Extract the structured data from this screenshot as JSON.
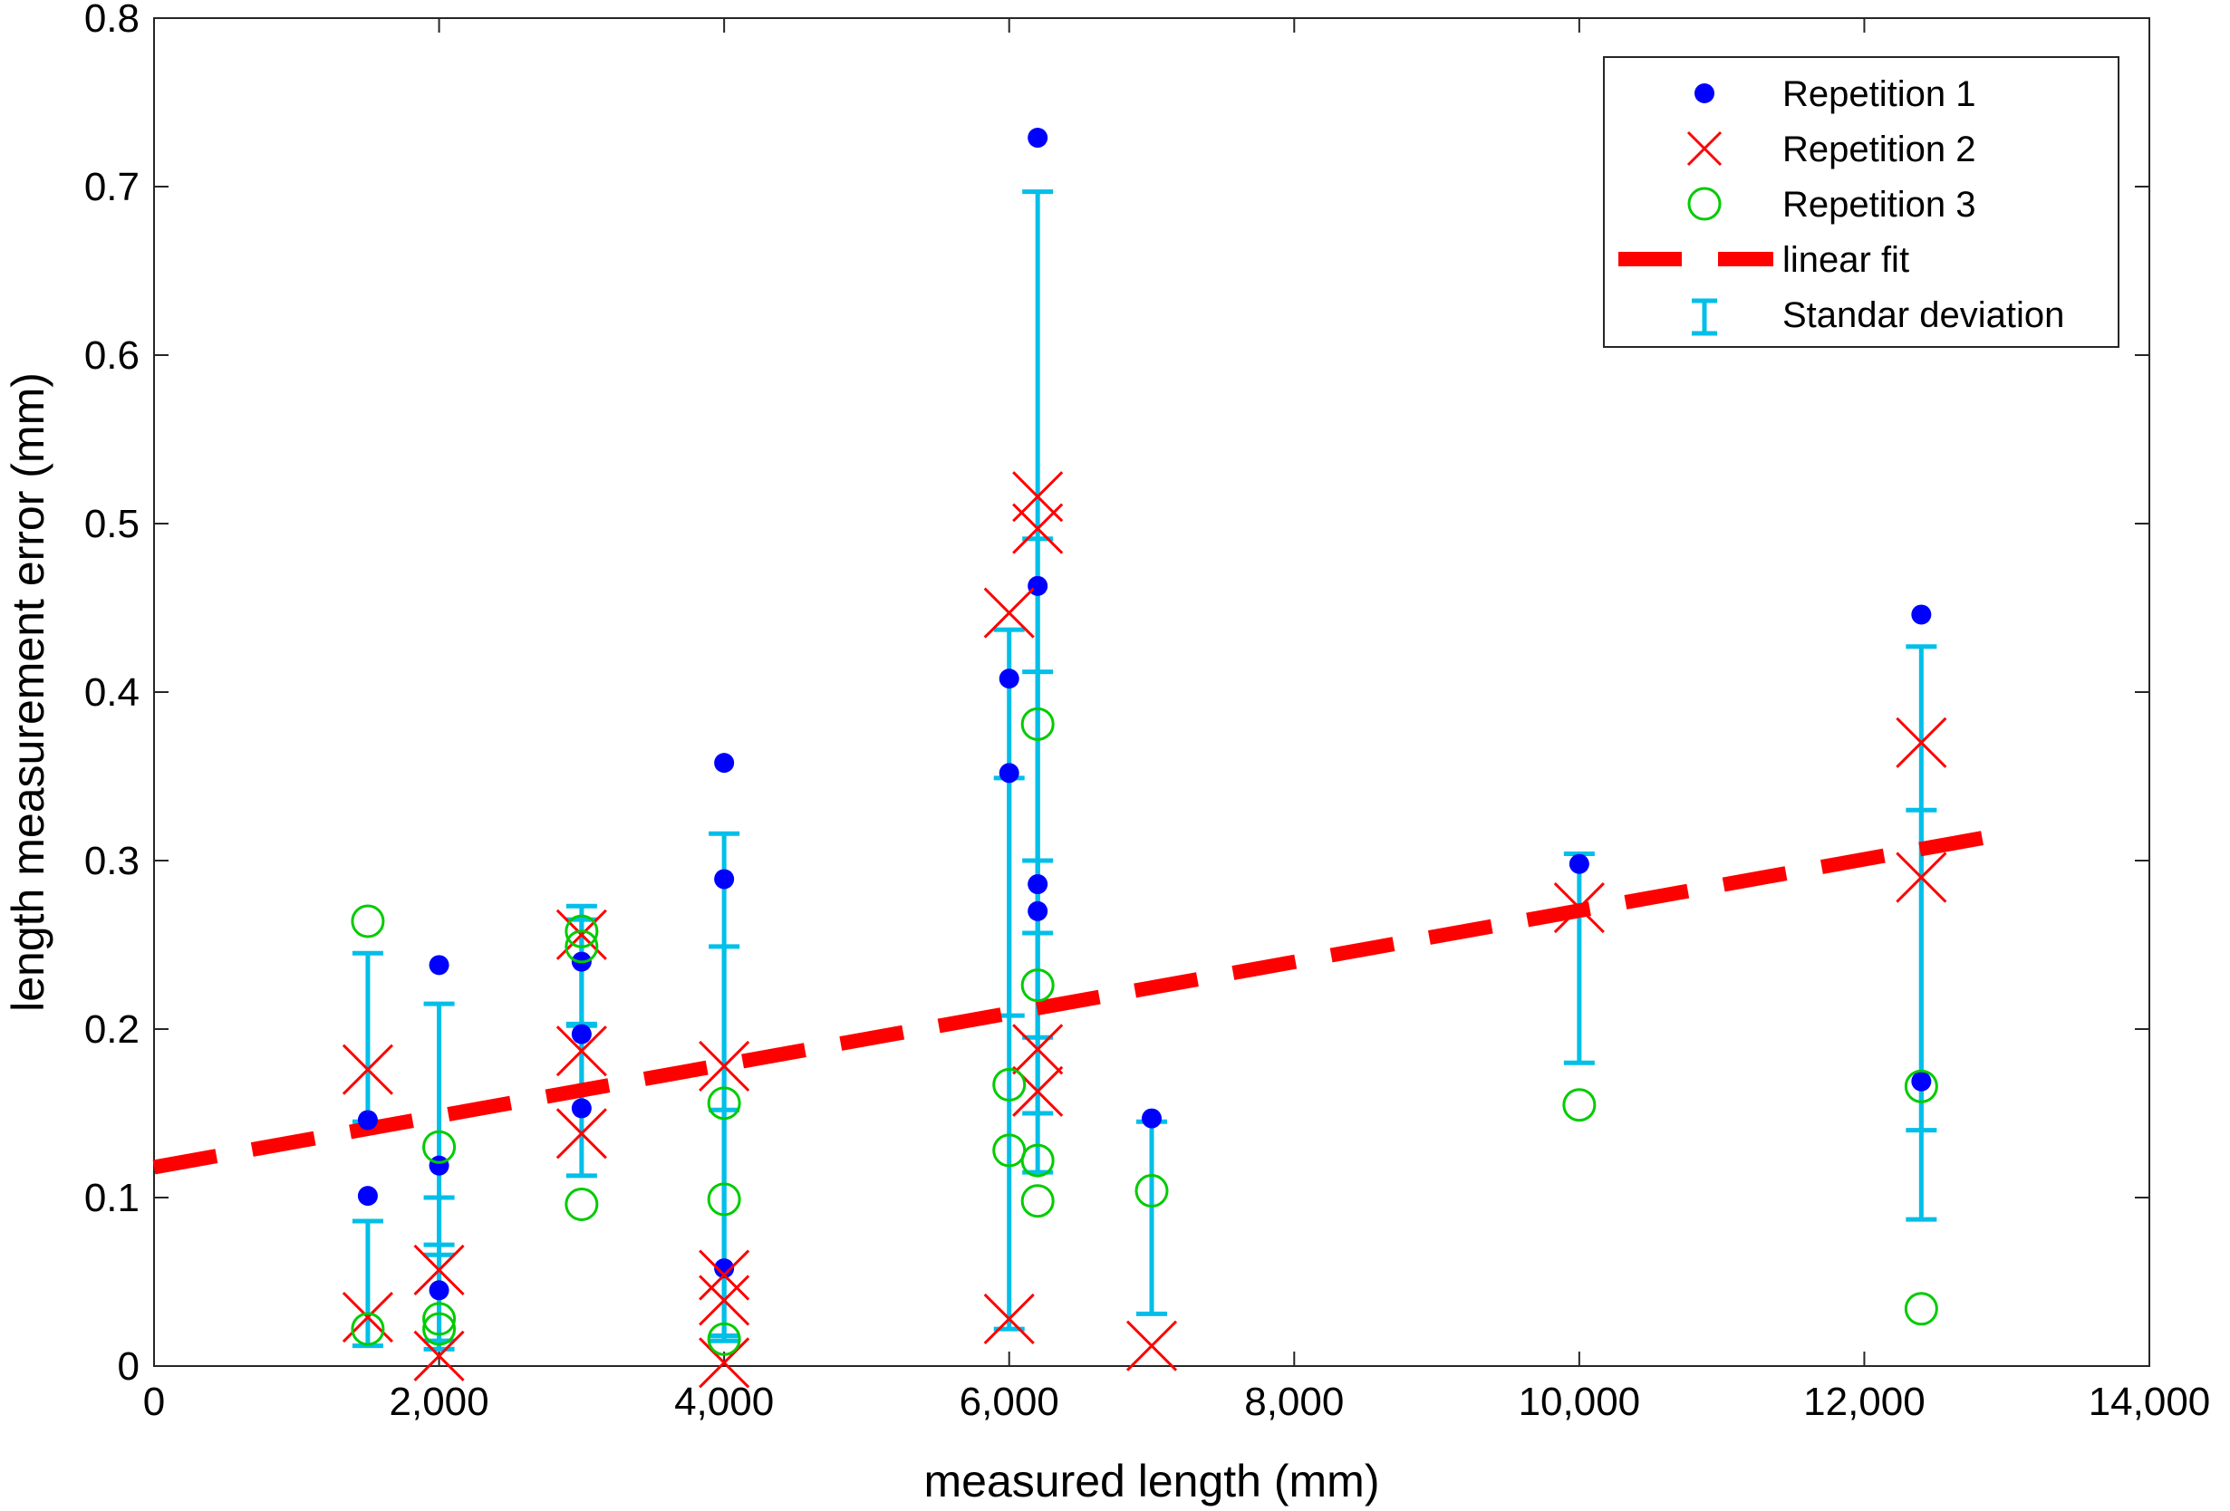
{
  "chart_data": {
    "type": "scatter",
    "xlabel": "measured length  (mm)",
    "ylabel": "length measurement error (mm)",
    "xlim": [
      0,
      14000
    ],
    "ylim": [
      0,
      0.8
    ],
    "x_ticks": [
      0,
      2000,
      4000,
      6000,
      8000,
      10000,
      12000,
      14000
    ],
    "x_tick_labels": [
      "0",
      "2,000",
      "4,000",
      "6,000",
      "8,000",
      "10,000",
      "12,000",
      "14,000"
    ],
    "y_ticks": [
      0,
      0.1,
      0.2,
      0.3,
      0.4,
      0.5,
      0.6,
      0.7,
      0.8
    ],
    "y_tick_labels": [
      "0",
      "0.1",
      "0.2",
      "0.3",
      "0.4",
      "0.5",
      "0.6",
      "0.7",
      "0.8"
    ],
    "grid": false,
    "legend_position": "top-right",
    "series": [
      {
        "name": "Repetition 1",
        "marker": "filled-circle",
        "color": "#0000ff",
        "points": [
          [
            1500,
            0.101
          ],
          [
            1500,
            0.146
          ],
          [
            2000,
            0.045
          ],
          [
            2000,
            0.119
          ],
          [
            2000,
            0.238
          ],
          [
            3000,
            0.153
          ],
          [
            3000,
            0.197
          ],
          [
            3000,
            0.24
          ],
          [
            4000,
            0.058
          ],
          [
            4000,
            0.289
          ],
          [
            4000,
            0.358
          ],
          [
            6000,
            0.352
          ],
          [
            6000,
            0.408
          ],
          [
            6200,
            0.27
          ],
          [
            6200,
            0.286
          ],
          [
            6200,
            0.463
          ],
          [
            6200,
            0.729
          ],
          [
            7000,
            0.147
          ],
          [
            10000,
            0.298
          ],
          [
            12400,
            0.169
          ],
          [
            12400,
            0.446
          ]
        ]
      },
      {
        "name": "Repetition 2",
        "marker": "x",
        "color": "#ff0000",
        "points": [
          [
            1500,
            0.029
          ],
          [
            1500,
            0.176
          ],
          [
            2000,
            0.006
          ],
          [
            2000,
            0.057
          ],
          [
            3000,
            0.138
          ],
          [
            3000,
            0.187
          ],
          [
            3000,
            0.256
          ],
          [
            4000,
            0.002
          ],
          [
            4000,
            0.039
          ],
          [
            4000,
            0.054
          ],
          [
            4000,
            0.178
          ],
          [
            6000,
            0.028
          ],
          [
            6000,
            0.447
          ],
          [
            6200,
            0.163
          ],
          [
            6200,
            0.188
          ],
          [
            6200,
            0.497
          ],
          [
            6200,
            0.516
          ],
          [
            7000,
            0.012
          ],
          [
            10000,
            0.272
          ],
          [
            12400,
            0.29
          ],
          [
            12400,
            0.37
          ]
        ]
      },
      {
        "name": "Repetition 3",
        "marker": "open-circle",
        "color": "#00cc00",
        "points": [
          [
            1500,
            0.022
          ],
          [
            1500,
            0.264
          ],
          [
            2000,
            0.022
          ],
          [
            2000,
            0.028
          ],
          [
            2000,
            0.13
          ],
          [
            3000,
            0.096
          ],
          [
            3000,
            0.249
          ],
          [
            3000,
            0.258
          ],
          [
            4000,
            0.016
          ],
          [
            4000,
            0.099
          ],
          [
            4000,
            0.156
          ],
          [
            6000,
            0.128
          ],
          [
            6000,
            0.167
          ],
          [
            6200,
            0.098
          ],
          [
            6200,
            0.122
          ],
          [
            6200,
            0.226
          ],
          [
            6200,
            0.381
          ],
          [
            7000,
            0.104
          ],
          [
            10000,
            0.155
          ],
          [
            12400,
            0.034
          ],
          [
            12400,
            0.166
          ]
        ]
      },
      {
        "name": "linear fit",
        "style": "dashed",
        "color": "#ff0000",
        "x": [
          0,
          13000
        ],
        "y": [
          0.118,
          0.316
        ]
      },
      {
        "name": "Standar deviation",
        "style": "errorbar",
        "color": "#00bfe8",
        "bars": [
          {
            "x": 1500,
            "low": 0.145,
            "high": 0.245
          },
          {
            "x": 1500,
            "low": 0.012,
            "high": 0.086
          },
          {
            "x": 2000,
            "low": 0.072,
            "high": 0.215
          },
          {
            "x": 2000,
            "low": 0.015,
            "high": 0.1
          },
          {
            "x": 2000,
            "low": 0.01,
            "high": 0.066
          },
          {
            "x": 3000,
            "low": 0.203,
            "high": 0.273
          },
          {
            "x": 3000,
            "low": 0.113,
            "high": 0.265
          },
          {
            "x": 3000,
            "low": 0.163,
            "high": 0.202
          },
          {
            "x": 4000,
            "low": 0.015,
            "high": 0.316
          },
          {
            "x": 4000,
            "low": 0.015,
            "high": 0.249
          },
          {
            "x": 4000,
            "low": 0.018,
            "high": 0.152
          },
          {
            "x": 6000,
            "low": 0.022,
            "high": 0.437
          },
          {
            "x": 6000,
            "low": 0.208,
            "high": 0.349
          },
          {
            "x": 6200,
            "low": 0.115,
            "high": 0.697
          },
          {
            "x": 6200,
            "low": 0.257,
            "high": 0.491
          },
          {
            "x": 6200,
            "low": 0.15,
            "high": 0.412
          },
          {
            "x": 6200,
            "low": 0.195,
            "high": 0.3
          },
          {
            "x": 7000,
            "low": 0.031,
            "high": 0.145
          },
          {
            "x": 10000,
            "low": 0.18,
            "high": 0.304
          },
          {
            "x": 12400,
            "low": 0.14,
            "high": 0.427
          },
          {
            "x": 12400,
            "low": 0.087,
            "high": 0.33
          }
        ]
      }
    ]
  }
}
